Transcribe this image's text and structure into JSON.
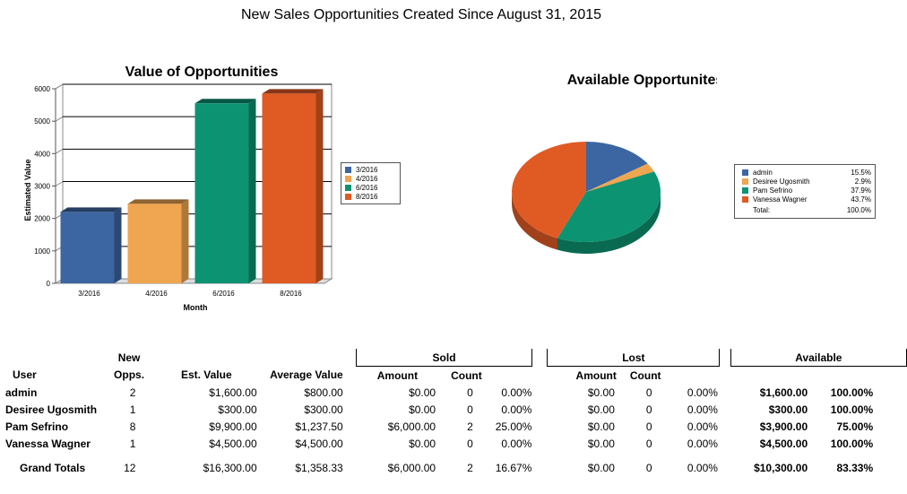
{
  "page_title": "New Sales Opportunities Created Since August 31, 2015",
  "chart_data": [
    {
      "type": "bar",
      "title": "Value of Opportunities",
      "xlabel": "Month",
      "ylabel": "Estimated Value",
      "categories": [
        "3/2016",
        "4/2016",
        "6/2016",
        "8/2016"
      ],
      "values": [
        2200,
        2450,
        5550,
        5850
      ],
      "colors": [
        "#3c66a1",
        "#f0a650",
        "#0c9371",
        "#e05a24"
      ],
      "ylim": [
        0,
        6000
      ],
      "yticks": [
        "0",
        "1000",
        "2000",
        "3000",
        "4000",
        "5000",
        "6000"
      ],
      "legend": [
        "3/2016",
        "4/2016",
        "6/2016",
        "8/2016"
      ],
      "legend_position": "right",
      "grid": true
    },
    {
      "type": "pie",
      "title": "Available Opportunites",
      "labels": [
        "admin",
        "Desiree Ugosmith",
        "Pam Sefrino",
        "Vanessa Wagner"
      ],
      "values": [
        15.5,
        2.9,
        37.9,
        43.7
      ],
      "percent_labels": [
        "15.5%",
        "2.9%",
        "37.9%",
        "43.7%"
      ],
      "colors": [
        "#3c66a1",
        "#f0a650",
        "#0c9371",
        "#e05a24"
      ],
      "total_label": "Total:",
      "total_value": "100.0%",
      "legend_position": "right"
    }
  ],
  "table": {
    "headers": {
      "user": "User",
      "new_opps_1": "New",
      "new_opps_2": "Opps.",
      "est_value": "Est. Value",
      "avg_value": "Average Value",
      "sold": "Sold",
      "lost": "Lost",
      "available": "Available",
      "amount": "Amount",
      "count": "Count"
    },
    "rows": [
      {
        "user": "admin",
        "new": "2",
        "est": "$1,600.00",
        "avg": "$800.00",
        "sold_amt": "$0.00",
        "sold_cnt": "0",
        "sold_pct": "0.00%",
        "lost_amt": "$0.00",
        "lost_cnt": "0",
        "lost_pct": "0.00%",
        "avail_amt": "$1,600.00",
        "avail_pct": "100.00%"
      },
      {
        "user": "Desiree Ugosmith",
        "new": "1",
        "est": "$300.00",
        "avg": "$300.00",
        "sold_amt": "$0.00",
        "sold_cnt": "0",
        "sold_pct": "0.00%",
        "lost_amt": "$0.00",
        "lost_cnt": "0",
        "lost_pct": "0.00%",
        "avail_amt": "$300.00",
        "avail_pct": "100.00%"
      },
      {
        "user": "Pam Sefrino",
        "new": "8",
        "est": "$9,900.00",
        "avg": "$1,237.50",
        "sold_amt": "$6,000.00",
        "sold_cnt": "2",
        "sold_pct": "25.00%",
        "lost_amt": "$0.00",
        "lost_cnt": "0",
        "lost_pct": "0.00%",
        "avail_amt": "$3,900.00",
        "avail_pct": "75.00%"
      },
      {
        "user": "Vanessa Wagner",
        "new": "1",
        "est": "$4,500.00",
        "avg": "$4,500.00",
        "sold_amt": "$0.00",
        "sold_cnt": "0",
        "sold_pct": "0.00%",
        "lost_amt": "$0.00",
        "lost_cnt": "0",
        "lost_pct": "0.00%",
        "avail_amt": "$4,500.00",
        "avail_pct": "100.00%"
      }
    ],
    "totals": {
      "label": "Grand Totals",
      "new": "12",
      "est": "$16,300.00",
      "avg": "$1,358.33",
      "sold_amt": "$6,000.00",
      "sold_cnt": "2",
      "sold_pct": "16.67%",
      "lost_amt": "$0.00",
      "lost_cnt": "0",
      "lost_pct": "0.00%",
      "avail_amt": "$10,300.00",
      "avail_pct": "83.33%"
    }
  }
}
